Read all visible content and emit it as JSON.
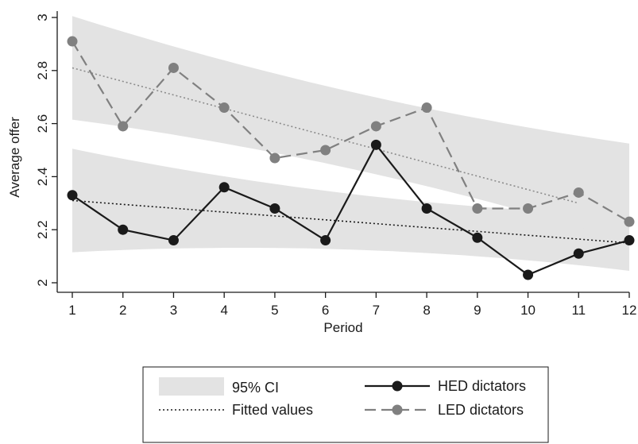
{
  "chart_data": {
    "type": "line",
    "xlabel": "Period",
    "ylabel": "Average offer",
    "x": [
      1,
      2,
      3,
      4,
      5,
      6,
      7,
      8,
      9,
      10,
      11,
      12
    ],
    "xlim": [
      1,
      12
    ],
    "ylim": [
      2,
      3
    ],
    "x_ticks": [
      "1",
      "2",
      "3",
      "4",
      "5",
      "6",
      "7",
      "8",
      "9",
      "10",
      "11",
      "12"
    ],
    "y_ticks": [
      "2",
      "2.2",
      "2.4",
      "2.6",
      "2.8",
      "3"
    ],
    "grid": false,
    "legend_position": "bottom",
    "series": [
      {
        "name": "HED dictators",
        "style": "solid-line-markers",
        "color": "#1a1a1a",
        "values": [
          2.33,
          2.2,
          2.16,
          2.36,
          2.28,
          2.16,
          2.52,
          2.28,
          2.17,
          2.03,
          2.11,
          2.16
        ]
      },
      {
        "name": "LED dictators",
        "style": "dashed-line-markers",
        "color": "#808080",
        "values": [
          2.91,
          2.59,
          2.81,
          2.66,
          2.47,
          2.5,
          2.59,
          2.66,
          2.28,
          2.28,
          2.34,
          2.23
        ]
      }
    ],
    "fitted": [
      {
        "group": "HED dictators",
        "color": "#1a1a1a",
        "x_range": [
          1,
          12
        ],
        "start": 2.31,
        "end": 2.15
      },
      {
        "group": "LED dictators",
        "color": "#8c8c8c",
        "x_range": [
          1,
          11
        ],
        "start": 2.81,
        "end": 2.3
      }
    ],
    "ci_bands": [
      {
        "group": "HED dictators",
        "color": "#e3e3e3",
        "upper": [
          2.46,
          2.21
        ],
        "lower": [
          2.16,
          2.09
        ],
        "curve": 1.5
      },
      {
        "group": "LED dictators",
        "color": "#e3e3e3",
        "upper": [
          2.96,
          2.48
        ],
        "lower": [
          2.66,
          2.2
        ],
        "curve": 1.5
      }
    ],
    "legend": {
      "ci_label": "95% CI",
      "fitted_label": "Fitted values",
      "hed_label": "HED dictators",
      "led_label": "LED dictators"
    }
  }
}
